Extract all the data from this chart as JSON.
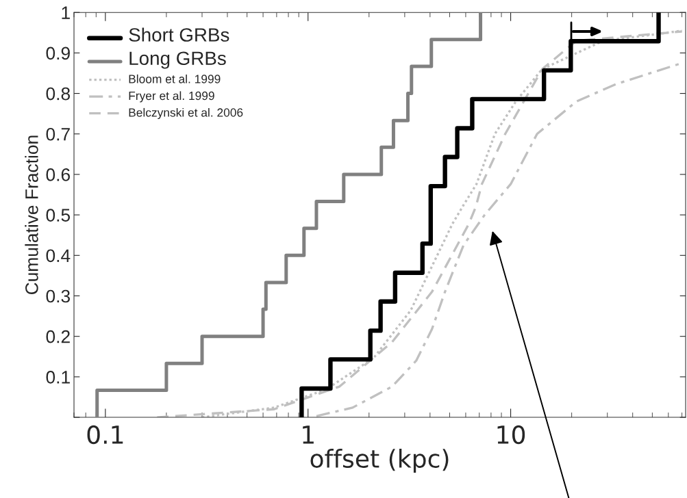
{
  "chart_data": {
    "type": "line",
    "xlabel": "offset (kpc)",
    "ylabel": "Cumulative Fraction",
    "log": "x",
    "xlim": [
      0.07,
      73
    ],
    "xticks": [
      0.1,
      1,
      10
    ],
    "ylim": [
      0,
      1
    ],
    "yticks": [
      {
        "value": 0,
        "label": null
      },
      0.1,
      0.2,
      0.3,
      0.4,
      0.5,
      0.6,
      0.7,
      0.8,
      0.9,
      1
    ],
    "grid": false,
    "legend": "top left",
    "marker": "none",
    "series": [
      {
        "name": "Short GRBs",
        "type": "step",
        "color": "#000000",
        "line_style": "solid",
        "x": [
          0.93,
          0.93,
          1.29,
          2.03,
          2.28,
          2.69,
          3.67,
          4.03,
          4.74,
          5.45,
          6.46,
          14.6,
          19.8,
          53.7
        ],
        "values": [
          0,
          0.071,
          0.143,
          0.214,
          0.286,
          0.357,
          0.429,
          0.571,
          0.643,
          0.714,
          0.786,
          0.857,
          0.929,
          1
        ]
      },
      {
        "name": "Long GRBs",
        "type": "step",
        "color": "#808080",
        "line_style": "solid",
        "x": [
          0.091,
          0.091,
          0.2,
          0.3,
          0.6,
          0.62,
          0.78,
          0.955,
          1.1,
          1.5,
          2.3,
          2.64,
          3.11,
          3.24,
          4.06,
          7.1
        ],
        "values": [
          0,
          0.067,
          0.133,
          0.2,
          0.267,
          0.333,
          0.4,
          0.467,
          0.533,
          0.6,
          0.667,
          0.733,
          0.8,
          0.867,
          0.933,
          1
        ]
      },
      {
        "name": "Bloom et al. 1999",
        "type": "line",
        "color": "#c0c0c0",
        "line_style": "dotted",
        "x": [
          0.3,
          0.68,
          1.23,
          2.11,
          3.21,
          5.16,
          5.85,
          6.78,
          8.36,
          10.6,
          14.3,
          28.6,
          52,
          70
        ],
        "values": [
          0,
          0.024,
          0.069,
          0.147,
          0.264,
          0.478,
          0.524,
          0.576,
          0.7,
          0.78,
          0.86,
          0.93,
          0.946,
          0.955
        ]
      },
      {
        "name": "Fryer et al. 1999",
        "type": "line",
        "color": "#c0c0c0",
        "line_style": "dashdot",
        "x": [
          1.1,
          1.66,
          2.6,
          3.42,
          4.09,
          4.74,
          5.85,
          7.44,
          10,
          13.5,
          21.1,
          33.1,
          70
        ],
        "values": [
          0.003,
          0.024,
          0.076,
          0.14,
          0.218,
          0.31,
          0.425,
          0.5,
          0.576,
          0.7,
          0.78,
          0.823,
          0.875
        ]
      },
      {
        "name": "Belczynski et al. 2006",
        "type": "line",
        "color": "#c0c0c0",
        "line_style": "dashed",
        "x": [
          0.18,
          0.68,
          1.43,
          2.6,
          4.09,
          6.22,
          6.73,
          7.21,
          9.4,
          11.6,
          14.3,
          21.1,
          70
        ],
        "values": [
          0,
          0.02,
          0.076,
          0.186,
          0.31,
          0.478,
          0.52,
          0.576,
          0.7,
          0.78,
          0.86,
          0.93,
          0.953
        ]
      }
    ]
  }
}
